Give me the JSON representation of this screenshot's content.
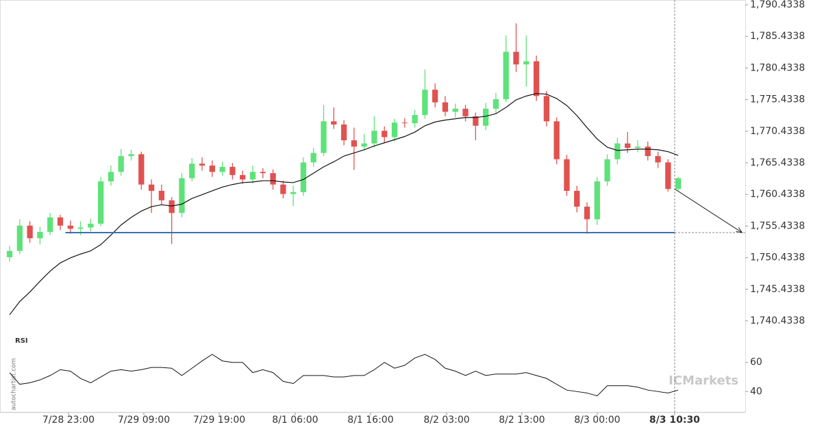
{
  "chart_data": {
    "type": "candlestick",
    "open": [
      1750.5,
      1751.5,
      1755.5,
      1753.5,
      1754.5,
      1756.8,
      1755.5,
      1755,
      1755.2,
      1755.8,
      1762.5,
      1764,
      1766.5,
      1766.8,
      1762,
      1761,
      1759.5,
      1757.5,
      1763,
      1765.3,
      1765,
      1764,
      1764.8,
      1763.5,
      1762.8,
      1764,
      1763.8,
      1762,
      1760.5,
      1760.8,
      1765.5,
      1767,
      1772,
      1771.5,
      1769,
      1768,
      1768.5,
      1770.5,
      1769.5,
      1771.8,
      1771.7,
      1773,
      1777,
      1775,
      1773.5,
      1774,
      1772.8,
      1771.3,
      1774,
      1775.5,
      1783,
      1781,
      1781.5,
      1776,
      1772,
      1766,
      1761,
      1758.5,
      1756.5,
      1762.5,
      1766,
      1768.5,
      1767.8,
      1768,
      1766.5,
      1765.5,
      1761.3
    ],
    "high": [
      1752.3,
      1756.5,
      1756.2,
      1755.3,
      1757.5,
      1757.2,
      1756.3,
      1756.2,
      1756.6,
      1763.2,
      1765,
      1767.6,
      1767.5,
      1767.2,
      1762.8,
      1762,
      1760,
      1763.8,
      1766.2,
      1766.3,
      1765.8,
      1765.6,
      1765.4,
      1764.2,
      1765,
      1764.6,
      1764.4,
      1762.6,
      1761.8,
      1766.3,
      1767.8,
      1774.6,
      1774.2,
      1772.2,
      1771,
      1770,
      1772.8,
      1771.2,
      1772.4,
      1772.5,
      1773.8,
      1780.2,
      1778,
      1776,
      1774.8,
      1774.6,
      1773.4,
      1774.9,
      1776.5,
      1785.6,
      1787.5,
      1785.6,
      1782.4,
      1776.8,
      1772.6,
      1766.7,
      1761.8,
      1759.2,
      1763.2,
      1766.8,
      1769.4,
      1770.3,
      1769,
      1768.8,
      1767.2,
      1766,
      1763.2
    ],
    "low": [
      1749.8,
      1751,
      1752.8,
      1752.5,
      1754,
      1754.8,
      1754.2,
      1754,
      1754.6,
      1755.4,
      1761.8,
      1763.4,
      1765.8,
      1761.2,
      1757.5,
      1758.8,
      1752.6,
      1756.8,
      1762.5,
      1764.2,
      1763.2,
      1763.4,
      1762.8,
      1762.1,
      1762.2,
      1763,
      1761.2,
      1759.8,
      1758.6,
      1760.2,
      1764.8,
      1766.5,
      1770.8,
      1768.2,
      1764.3,
      1767.4,
      1767.9,
      1768.6,
      1768.8,
      1771,
      1771,
      1772.4,
      1774.2,
      1772.8,
      1772.6,
      1772,
      1769,
      1770.6,
      1773.3,
      1775,
      1779.8,
      1777.5,
      1775.2,
      1771.2,
      1765.2,
      1760.2,
      1757.6,
      1754.2,
      1755.6,
      1761.8,
      1765.2,
      1767,
      1767.1,
      1765.8,
      1764.6,
      1760.9,
      1761.1
    ],
    "close": [
      1751.5,
      1755.5,
      1753.5,
      1754.5,
      1756.8,
      1755.5,
      1755,
      1755.2,
      1755.8,
      1762.5,
      1764,
      1766.5,
      1766.8,
      1762,
      1761,
      1759.5,
      1757.5,
      1763,
      1765.3,
      1765,
      1764,
      1764.8,
      1763.5,
      1762.8,
      1764,
      1763.8,
      1762,
      1760.5,
      1760.8,
      1765.5,
      1767,
      1772,
      1771.5,
      1769,
      1768,
      1768.5,
      1770.5,
      1769.5,
      1771.8,
      1771.7,
      1773,
      1777,
      1775,
      1773.5,
      1774,
      1772.8,
      1771.3,
      1774,
      1775.5,
      1783,
      1781,
      1781.5,
      1776,
      1772,
      1766,
      1761,
      1758.5,
      1756.5,
      1762.5,
      1766,
      1768.5,
      1767.8,
      1768,
      1766.5,
      1765.5,
      1761.3,
      1763
    ],
    "colors": {
      "up": "#5ee27a",
      "down": "#e0524f"
    },
    "ma": {
      "color": "#111111",
      "values": [
        1741.4,
        1743.5,
        1745,
        1746.7,
        1748.3,
        1749.6,
        1750.4,
        1751,
        1751.5,
        1752.5,
        1754,
        1755.6,
        1756.8,
        1757.8,
        1758.5,
        1758.8,
        1758.6,
        1758.9,
        1759.8,
        1760.4,
        1761,
        1761.6,
        1762,
        1762.3,
        1762.4,
        1762.6,
        1762.6,
        1762.4,
        1762.3,
        1762.8,
        1763.8,
        1764.8,
        1765.6,
        1766.5,
        1767,
        1767.5,
        1768.1,
        1768.6,
        1769.1,
        1769.6,
        1770.3,
        1771.3,
        1771.9,
        1772.2,
        1772.4,
        1772.6,
        1772.6,
        1772.8,
        1773.2,
        1774.2,
        1775.4,
        1776,
        1776.4,
        1776.3,
        1775.6,
        1774.5,
        1772.9,
        1771,
        1769.2,
        1767.9,
        1767.4,
        1767.5,
        1767.6,
        1767.6,
        1767.5,
        1767.2,
        1766.6
      ]
    },
    "xlim": [
      -0.95,
      72.62
    ],
    "xticks": [
      {
        "value": 5.81,
        "label": "7/28 23:00"
      },
      {
        "value": 13.25,
        "label": "7/29 09:00"
      },
      {
        "value": 20.69,
        "label": "7/29 19:00"
      },
      {
        "value": 28.19,
        "label": "8/1 06:00"
      },
      {
        "value": 35.63,
        "label": "8/1 16:00"
      },
      {
        "value": 43.14,
        "label": "8/2 03:00"
      },
      {
        "value": 50.57,
        "label": "8/2 13:00"
      },
      {
        "value": 58.01,
        "label": "8/3 00:00"
      },
      {
        "value": 65.65,
        "label": "8/3 10:30"
      }
    ],
    "ylim": [
      1740.4338,
      1790.4338
    ],
    "yticks": [
      {
        "value": 1740.4338,
        "label": "1,740.4338"
      },
      {
        "value": 1745.4338,
        "label": "1,745.4338"
      },
      {
        "value": 1750.4338,
        "label": "1,750.4338"
      },
      {
        "value": 1755.4338,
        "label": "1,755.4338"
      },
      {
        "value": 1760.4338,
        "label": "1,760.4338"
      },
      {
        "value": 1765.4338,
        "label": "1,765.4338"
      },
      {
        "value": 1770.4338,
        "label": "1,770.4338"
      },
      {
        "value": 1775.4338,
        "label": "1,775.4338"
      },
      {
        "value": 1780.4338,
        "label": "1,780.4338"
      },
      {
        "value": 1785.4338,
        "label": "1,785.4338"
      },
      {
        "value": 1790.4338,
        "label": "1,790.4338"
      }
    ],
    "support": {
      "value": 1754.4,
      "start": 5.5,
      "color": "#3a6fb0"
    },
    "forecast": {
      "from": [
        65.65,
        1761.3
      ],
      "to": [
        72.3,
        1754.4
      ]
    },
    "rsi": {
      "label": "RSI",
      "ylim": [
        27,
        81
      ],
      "yticks": [
        40,
        60
      ],
      "color": "#111111",
      "values": [
        52.9,
        45,
        46,
        48,
        51,
        55,
        54,
        49,
        46,
        50,
        54,
        55,
        54,
        55,
        56.5,
        56.5,
        56,
        51,
        56,
        61,
        65.5,
        61,
        60,
        60,
        53,
        55,
        53,
        47,
        45.5,
        51,
        51,
        51,
        50,
        50,
        51,
        51,
        55,
        60,
        56,
        58,
        63,
        65.5,
        62,
        56,
        54,
        51,
        54,
        51,
        52,
        52,
        52,
        53,
        51,
        49,
        45,
        41,
        40,
        39,
        37,
        44,
        44,
        44,
        43,
        41,
        40,
        39,
        41
      ]
    },
    "watermark": "autochartist.com",
    "brand": "ICMarkets"
  }
}
